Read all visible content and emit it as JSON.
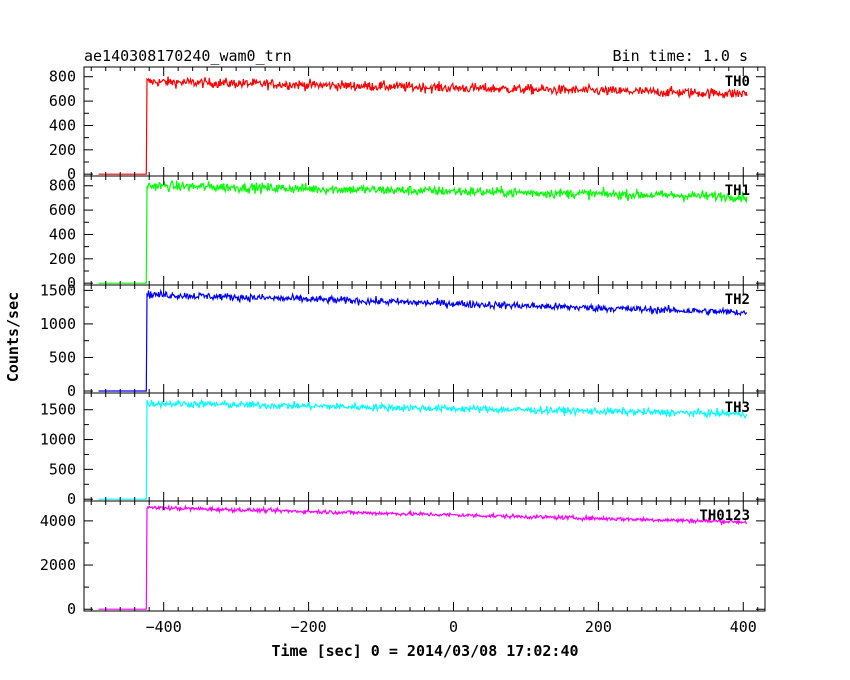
{
  "header": {
    "title": "ae140308170240_wam0_trn",
    "bin_time": "Bin time: 1.0 s"
  },
  "axes": {
    "xlabel": "Time [sec] 0 = 2014/03/08 17:02:40",
    "ylabel": "Counts/sec"
  },
  "chart_data": {
    "type": "line",
    "title": "ae140308170240_wam0_trn",
    "subtitle": "Bin time: 1.0 s",
    "xlabel": "Time [sec] 0 = 2014/03/08 17:02:40",
    "ylabel": "Counts/sec",
    "xlim": [
      -510,
      430
    ],
    "x_ticks": [
      -400,
      -200,
      0,
      200,
      400
    ],
    "x_tick_labels": [
      "−400",
      "−200",
      "0",
      "200",
      "400"
    ],
    "grid": false,
    "legend": "none",
    "x_start": -490,
    "x_onset": -424,
    "x_end": 405,
    "panels": [
      {
        "name": "TH0",
        "color": "#ff0000",
        "ylim": [
          -15,
          880
        ],
        "yticks": [
          0,
          200,
          400,
          600,
          800
        ],
        "baseline": 0,
        "level_start": 760,
        "level_end": 660,
        "noise": 40,
        "series": [
          {
            "x": -490,
            "y": 0
          },
          {
            "x": -424,
            "y": 0
          },
          {
            "x": -423,
            "y": 760
          },
          {
            "x": -300,
            "y": 745
          },
          {
            "x": -200,
            "y": 725
          },
          {
            "x": -100,
            "y": 715
          },
          {
            "x": 0,
            "y": 705
          },
          {
            "x": 100,
            "y": 690
          },
          {
            "x": 200,
            "y": 680
          },
          {
            "x": 300,
            "y": 670
          },
          {
            "x": 405,
            "y": 660
          }
        ]
      },
      {
        "name": "TH1",
        "color": "#00ff00",
        "ylim": [
          -15,
          880
        ],
        "yticks": [
          0,
          200,
          400,
          600,
          800
        ],
        "baseline": 0,
        "level_start": 800,
        "level_end": 710,
        "noise": 40,
        "series": [
          {
            "x": -490,
            "y": 0
          },
          {
            "x": -424,
            "y": 0
          },
          {
            "x": -423,
            "y": 800
          },
          {
            "x": -300,
            "y": 790
          },
          {
            "x": -200,
            "y": 775
          },
          {
            "x": -100,
            "y": 760
          },
          {
            "x": 0,
            "y": 750
          },
          {
            "x": 100,
            "y": 740
          },
          {
            "x": 200,
            "y": 730
          },
          {
            "x": 300,
            "y": 720
          },
          {
            "x": 405,
            "y": 710
          }
        ]
      },
      {
        "name": "TH2",
        "color": "#0000ff",
        "ylim": [
          -30,
          1580
        ],
        "yticks": [
          0,
          500,
          1000,
          1500
        ],
        "baseline": 0,
        "level_start": 1440,
        "level_end": 1170,
        "noise": 55,
        "series": [
          {
            "x": -490,
            "y": 0
          },
          {
            "x": -424,
            "y": 0
          },
          {
            "x": -423,
            "y": 1440
          },
          {
            "x": -300,
            "y": 1410
          },
          {
            "x": -200,
            "y": 1370
          },
          {
            "x": -100,
            "y": 1330
          },
          {
            "x": 0,
            "y": 1290
          },
          {
            "x": 100,
            "y": 1260
          },
          {
            "x": 200,
            "y": 1220
          },
          {
            "x": 300,
            "y": 1190
          },
          {
            "x": 405,
            "y": 1170
          }
        ]
      },
      {
        "name": "TH3",
        "color": "#00ffff",
        "ylim": [
          -30,
          1780
        ],
        "yticks": [
          0,
          500,
          1000,
          1500
        ],
        "baseline": 0,
        "level_start": 1610,
        "level_end": 1430,
        "noise": 60,
        "series": [
          {
            "x": -490,
            "y": 0
          },
          {
            "x": -424,
            "y": 0
          },
          {
            "x": -423,
            "y": 1610
          },
          {
            "x": -300,
            "y": 1590
          },
          {
            "x": -200,
            "y": 1560
          },
          {
            "x": -100,
            "y": 1540
          },
          {
            "x": 0,
            "y": 1510
          },
          {
            "x": 100,
            "y": 1490
          },
          {
            "x": 200,
            "y": 1470
          },
          {
            "x": 300,
            "y": 1450
          },
          {
            "x": 405,
            "y": 1430
          }
        ]
      },
      {
        "name": "TH0123",
        "color": "#ff00ff",
        "ylim": [
          -80,
          4900
        ],
        "yticks": [
          0,
          2000,
          4000
        ],
        "baseline": 0,
        "level_start": 4600,
        "level_end": 3950,
        "noise": 90,
        "series": [
          {
            "x": -490,
            "y": 0
          },
          {
            "x": -424,
            "y": 0
          },
          {
            "x": -423,
            "y": 4600
          },
          {
            "x": -300,
            "y": 4520
          },
          {
            "x": -200,
            "y": 4430
          },
          {
            "x": -100,
            "y": 4340
          },
          {
            "x": 0,
            "y": 4260
          },
          {
            "x": 100,
            "y": 4180
          },
          {
            "x": 200,
            "y": 4100
          },
          {
            "x": 300,
            "y": 4020
          },
          {
            "x": 405,
            "y": 3950
          }
        ]
      }
    ]
  }
}
